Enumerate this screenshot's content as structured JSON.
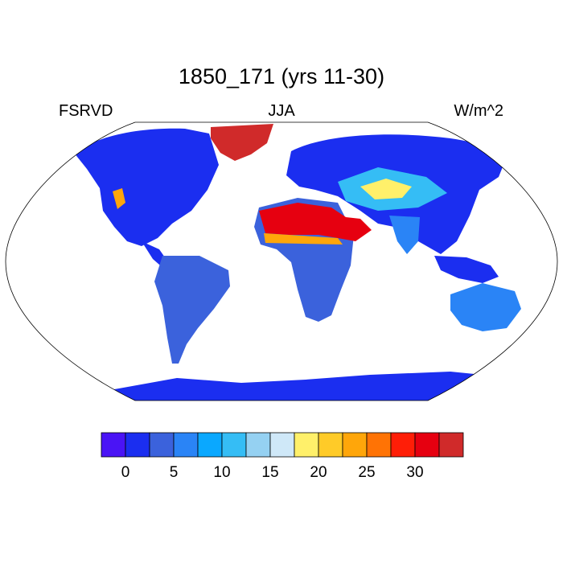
{
  "title": "1850_171 (yrs 11-30)",
  "left_label": "FSRVD",
  "center_label": "JJA",
  "right_label": "W/m^2",
  "colorbar": {
    "colors": [
      "#4a14f5",
      "#1b2ef0",
      "#3b62dc",
      "#2a84f6",
      "#0aa8ff",
      "#35bdf5",
      "#95d1f2",
      "#cfe8f8",
      "#fff06a",
      "#ffcb28",
      "#ffa60a",
      "#ff7305",
      "#ff1e07",
      "#e60010",
      "#d02a2a"
    ],
    "tick_labels": [
      "0",
      "5",
      "10",
      "15",
      "20",
      "25",
      "30"
    ]
  },
  "land_color": "#1b2ef0"
}
